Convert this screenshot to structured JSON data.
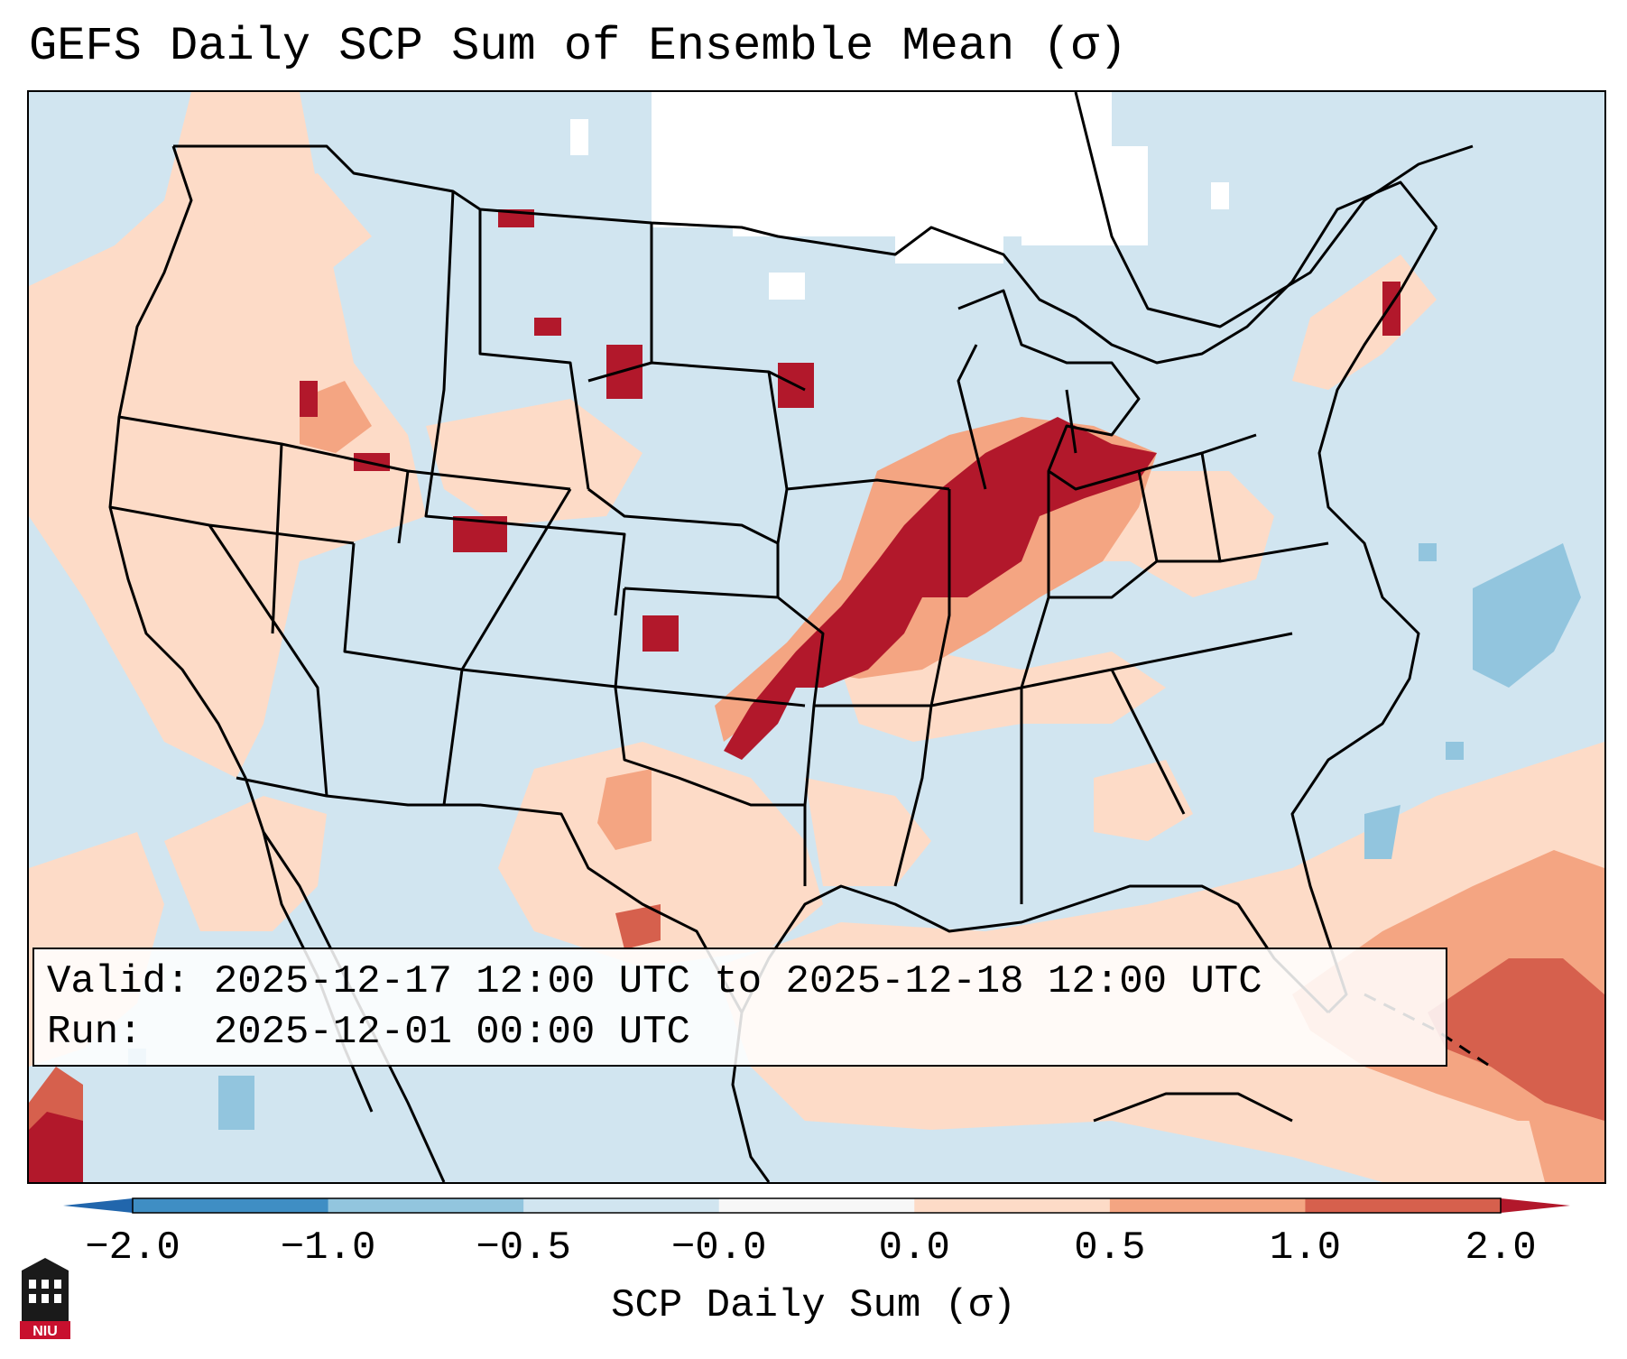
{
  "title": "GEFS Daily SCP Sum of Ensemble Mean (σ)",
  "info": {
    "valid_line": "Valid: 2025-12-17 12:00 UTC to 2025-12-18 12:00 UTC",
    "run_line": "Run:   2025-12-01 00:00 UTC"
  },
  "colorbar": {
    "title": "SCP Daily Sum (σ)",
    "tick_labels": [
      "−2.0",
      "−1.0",
      "−0.5",
      "−0.0",
      "0.0",
      "0.5",
      "1.0",
      "2.0"
    ],
    "bin_colors": [
      "#3f8ec4",
      "#92c5de",
      "#d1e5f0",
      "#f7f7f7",
      "#fddbc7",
      "#f4a582",
      "#d6604d"
    ],
    "under_color": "#2166ac",
    "over_color": "#b2182b"
  },
  "colors": {
    "neg_small": "#d1e5f0",
    "neg_mid": "#92c5de",
    "neutral": "#ffffff",
    "pos_small": "#fddbc7",
    "pos_mid": "#f4a582",
    "pos_high": "#d6604d",
    "pos_extreme": "#b2182b"
  },
  "logo": {
    "label": "NIU"
  }
}
